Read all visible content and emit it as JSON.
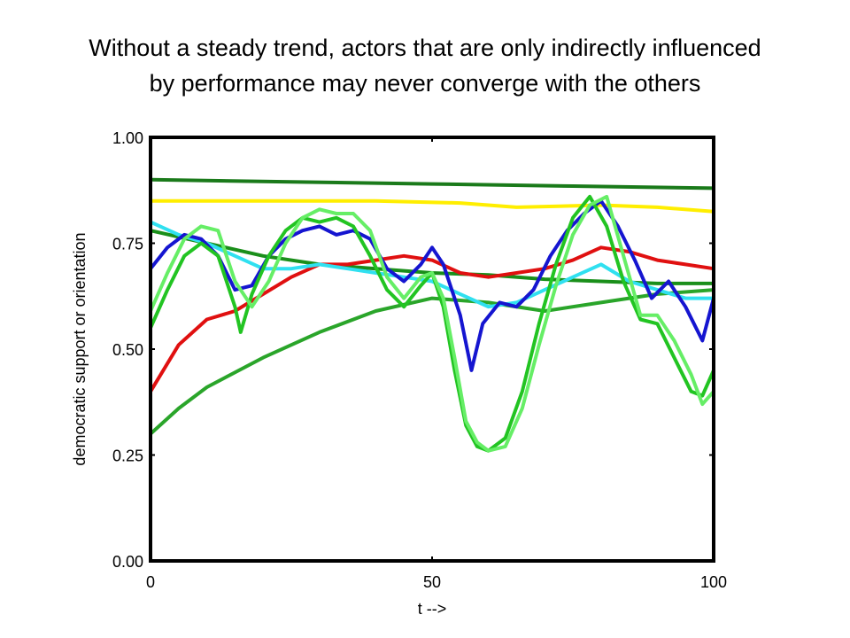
{
  "slide": {
    "title_line1": "Without a steady trend, actors that are only indirectly influenced",
    "title_line2": "by performance may never converge with the others"
  },
  "chart_data": {
    "type": "line",
    "title": "",
    "xlabel": "t -->",
    "ylabel": "democratic support or orientation",
    "xlim": [
      0,
      100
    ],
    "ylim": [
      0,
      1
    ],
    "xticks": [
      "0",
      "50",
      "100"
    ],
    "yticks": [
      "0.00",
      "0.25",
      "0.50",
      "0.75",
      "1.00"
    ],
    "grid": false,
    "legend": "none",
    "series": [
      {
        "color": "#1a7a1a",
        "x": [
          0,
          25,
          50,
          75,
          100
        ],
        "y": [
          0.9,
          0.895,
          0.89,
          0.885,
          0.88
        ]
      },
      {
        "color": "#ffee00",
        "x": [
          0,
          20,
          40,
          55,
          65,
          80,
          90,
          100
        ],
        "y": [
          0.85,
          0.85,
          0.85,
          0.845,
          0.835,
          0.84,
          0.835,
          0.825
        ]
      },
      {
        "color": "#1a8f1a",
        "x": [
          0,
          10,
          20,
          30,
          40,
          50,
          60,
          70,
          80,
          90,
          100
        ],
        "y": [
          0.78,
          0.75,
          0.72,
          0.7,
          0.69,
          0.68,
          0.675,
          0.665,
          0.66,
          0.655,
          0.655
        ]
      },
      {
        "color": "#e01010",
        "x": [
          0,
          5,
          10,
          15,
          20,
          25,
          30,
          35,
          40,
          45,
          50,
          55,
          60,
          65,
          70,
          75,
          80,
          85,
          90,
          95,
          100
        ],
        "y": [
          0.4,
          0.51,
          0.57,
          0.59,
          0.63,
          0.67,
          0.7,
          0.7,
          0.71,
          0.72,
          0.71,
          0.68,
          0.67,
          0.68,
          0.69,
          0.71,
          0.74,
          0.73,
          0.71,
          0.7,
          0.69
        ]
      },
      {
        "color": "#2aa52a",
        "x": [
          0,
          5,
          10,
          20,
          30,
          40,
          50,
          60,
          70,
          80,
          90,
          100
        ],
        "y": [
          0.3,
          0.36,
          0.41,
          0.48,
          0.54,
          0.59,
          0.62,
          0.61,
          0.59,
          0.61,
          0.63,
          0.64
        ]
      },
      {
        "color": "#30e0f0",
        "x": [
          0,
          5,
          10,
          15,
          20,
          25,
          30,
          35,
          40,
          45,
          50,
          55,
          60,
          65,
          70,
          75,
          80,
          85,
          90,
          95,
          100
        ],
        "y": [
          0.8,
          0.77,
          0.75,
          0.72,
          0.69,
          0.69,
          0.7,
          0.69,
          0.68,
          0.67,
          0.66,
          0.63,
          0.6,
          0.61,
          0.64,
          0.67,
          0.7,
          0.66,
          0.64,
          0.62,
          0.62
        ]
      },
      {
        "color": "#1515d0",
        "x": [
          0,
          3,
          6,
          9,
          12,
          15,
          18,
          21,
          24,
          27,
          30,
          33,
          36,
          39,
          42,
          45,
          48,
          50,
          52,
          55,
          57,
          59,
          62,
          65,
          68,
          71,
          74,
          77,
          80,
          83,
          86,
          89,
          92,
          95,
          98,
          100
        ],
        "y": [
          0.69,
          0.74,
          0.77,
          0.76,
          0.72,
          0.64,
          0.65,
          0.72,
          0.76,
          0.78,
          0.79,
          0.77,
          0.78,
          0.76,
          0.69,
          0.66,
          0.7,
          0.74,
          0.7,
          0.58,
          0.45,
          0.56,
          0.61,
          0.6,
          0.64,
          0.72,
          0.78,
          0.82,
          0.85,
          0.79,
          0.71,
          0.62,
          0.66,
          0.6,
          0.52,
          0.62
        ]
      },
      {
        "color": "#22c422",
        "x": [
          0,
          3,
          6,
          9,
          12,
          15,
          16,
          18,
          21,
          24,
          27,
          30,
          33,
          36,
          39,
          42,
          45,
          48,
          50,
          52,
          54,
          56,
          58,
          60,
          63,
          66,
          69,
          72,
          75,
          78,
          81,
          84,
          87,
          90,
          93,
          96,
          98,
          100
        ],
        "y": [
          0.55,
          0.64,
          0.72,
          0.75,
          0.72,
          0.6,
          0.54,
          0.63,
          0.72,
          0.78,
          0.81,
          0.8,
          0.81,
          0.79,
          0.72,
          0.64,
          0.6,
          0.65,
          0.68,
          0.6,
          0.45,
          0.32,
          0.27,
          0.26,
          0.29,
          0.4,
          0.56,
          0.7,
          0.81,
          0.86,
          0.79,
          0.66,
          0.57,
          0.56,
          0.48,
          0.4,
          0.39,
          0.45
        ]
      },
      {
        "color": "#66ee66",
        "x": [
          0,
          3,
          6,
          9,
          12,
          15,
          18,
          21,
          24,
          27,
          30,
          33,
          36,
          39,
          42,
          45,
          48,
          50,
          52,
          54,
          56,
          58,
          60,
          63,
          66,
          69,
          72,
          75,
          78,
          81,
          84,
          87,
          90,
          93,
          96,
          98,
          100
        ],
        "y": [
          0.59,
          0.68,
          0.76,
          0.79,
          0.78,
          0.66,
          0.6,
          0.66,
          0.75,
          0.81,
          0.83,
          0.82,
          0.82,
          0.78,
          0.67,
          0.62,
          0.67,
          0.68,
          0.62,
          0.48,
          0.33,
          0.28,
          0.26,
          0.27,
          0.36,
          0.51,
          0.65,
          0.77,
          0.84,
          0.86,
          0.72,
          0.58,
          0.58,
          0.52,
          0.44,
          0.37,
          0.4
        ]
      }
    ]
  }
}
